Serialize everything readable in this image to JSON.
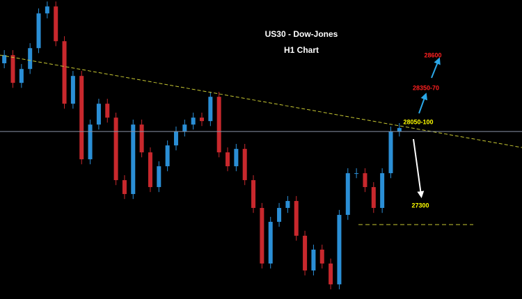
{
  "chart_data": {
    "type": "candlestick",
    "title": "US30 - Dow-Jones",
    "subtitle": "H1 Chart",
    "up_color": "#2b8fd6",
    "down_color": "#c8282d",
    "ylim": [
      26700,
      29110
    ],
    "open": [
      28600,
      28666,
      28442,
      28554,
      28722,
      29002,
      29058,
      28778,
      28274,
      28498,
      27826,
      28106,
      28274,
      28162,
      27658,
      27546,
      28106,
      27882,
      27602,
      27770,
      27938,
      28050,
      28106,
      28162,
      28134,
      28330,
      27882,
      27770,
      27910,
      27658,
      27434,
      26986,
      27322,
      27434,
      27490,
      27210,
      26930,
      27098,
      26986,
      26818,
      27378,
      27714,
      27714,
      27602,
      27434,
      27714,
      28050
    ],
    "high": [
      28706,
      28706,
      28594,
      28762,
      29042,
      29098,
      29098,
      28818,
      28538,
      28538,
      28146,
      28314,
      28314,
      28202,
      27698,
      28146,
      28146,
      27922,
      27810,
      27978,
      28090,
      28146,
      28202,
      28202,
      28370,
      28370,
      27922,
      27950,
      27950,
      27698,
      27474,
      27362,
      27474,
      27530,
      27530,
      27250,
      27138,
      27138,
      27026,
      27418,
      27754,
      27754,
      27754,
      27642,
      27754,
      28090,
      28118
    ],
    "low": [
      28560,
      28402,
      28402,
      28514,
      28682,
      28962,
      28738,
      28234,
      28234,
      27786,
      27786,
      28066,
      28122,
      27618,
      27506,
      27506,
      27842,
      27562,
      27562,
      27730,
      27898,
      28010,
      28066,
      28094,
      28094,
      27842,
      27730,
      27730,
      27618,
      27394,
      26946,
      26946,
      27282,
      27394,
      27170,
      26890,
      26890,
      26946,
      26778,
      26778,
      27338,
      27674,
      27562,
      27394,
      27394,
      27674,
      28010
    ],
    "close": [
      28666,
      28442,
      28554,
      28722,
      29002,
      29058,
      28778,
      28274,
      28498,
      27826,
      28106,
      28274,
      28162,
      27658,
      27546,
      28106,
      27882,
      27602,
      27770,
      27938,
      28050,
      28106,
      28162,
      28134,
      28330,
      27882,
      27770,
      27910,
      27658,
      27434,
      26986,
      27322,
      27434,
      27490,
      27210,
      26930,
      27098,
      26986,
      26818,
      27378,
      27714,
      27714,
      27602,
      27434,
      27714,
      28050,
      28078
    ],
    "trendline": [
      28666,
      27921
    ],
    "resistance": 28050,
    "support": 27300,
    "annotations": [
      {
        "text": "28600",
        "color": "#ff2020"
      },
      {
        "text": "28350-70",
        "color": "#ff2020"
      },
      {
        "text": "28050-100",
        "color": "#ffff00"
      },
      {
        "text": "27300",
        "color": "#ffff00"
      }
    ]
  }
}
